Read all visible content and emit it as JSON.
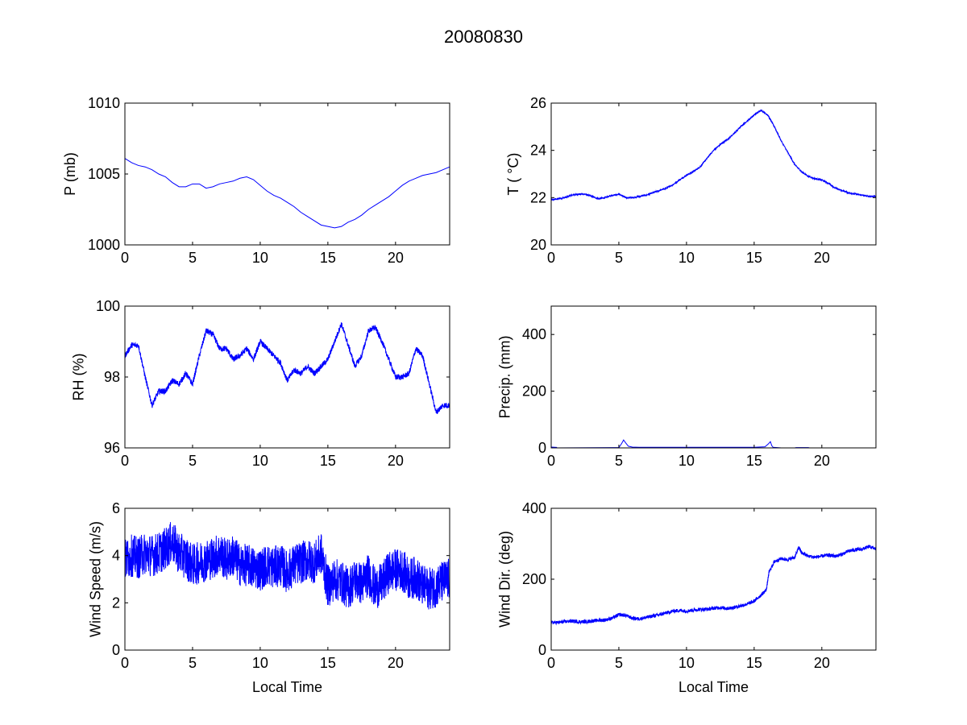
{
  "figure": {
    "title": "20080830"
  },
  "chart_data": [
    {
      "id": "pressure",
      "type": "line",
      "ylabel": "P (mb)",
      "xlabel": "",
      "xlim": [
        0,
        24
      ],
      "ylim": [
        1000,
        1010
      ],
      "xticks": [
        0,
        5,
        10,
        15,
        20
      ],
      "yticks": [
        1000,
        1005,
        1010
      ],
      "series": [
        {
          "color": "#0000ff",
          "noise": 0.0,
          "x": [
            0,
            0.5,
            1,
            1.5,
            2,
            2.5,
            3,
            3.5,
            4,
            4.5,
            5,
            5.5,
            6,
            6.5,
            7,
            7.5,
            8,
            8.5,
            9,
            9.5,
            10,
            10.5,
            11,
            11.5,
            12,
            12.5,
            13,
            13.5,
            14,
            14.5,
            15,
            15.5,
            16,
            16.5,
            17,
            17.5,
            18,
            18.5,
            19,
            19.5,
            20,
            20.5,
            21,
            21.5,
            22,
            22.5,
            23,
            23.5,
            24
          ],
          "y": [
            1006.1,
            1005.8,
            1005.6,
            1005.5,
            1005.3,
            1005.0,
            1004.8,
            1004.4,
            1004.1,
            1004.1,
            1004.3,
            1004.3,
            1004.0,
            1004.1,
            1004.3,
            1004.4,
            1004.5,
            1004.7,
            1004.8,
            1004.6,
            1004.2,
            1003.8,
            1003.5,
            1003.3,
            1003.0,
            1002.7,
            1002.3,
            1002.0,
            1001.7,
            1001.4,
            1001.3,
            1001.2,
            1001.3,
            1001.6,
            1001.8,
            1002.1,
            1002.5,
            1002.8,
            1003.1,
            1003.4,
            1003.8,
            1004.2,
            1004.5,
            1004.7,
            1004.9,
            1005.0,
            1005.1,
            1005.3,
            1005.5
          ]
        }
      ]
    },
    {
      "id": "temperature",
      "type": "line",
      "ylabel": "T ( °C)",
      "xlabel": "",
      "xlim": [
        0,
        24
      ],
      "ylim": [
        20,
        26
      ],
      "xticks": [
        0,
        5,
        10,
        15,
        20
      ],
      "yticks": [
        20,
        22,
        24,
        26
      ],
      "series": [
        {
          "color": "#0000ff",
          "noise": 0.03,
          "x": [
            0,
            0.5,
            1,
            1.5,
            2,
            2.5,
            3,
            3.5,
            4,
            4.5,
            5,
            5.5,
            6,
            6.5,
            7,
            7.5,
            8,
            8.5,
            9,
            9.5,
            10,
            10.5,
            11,
            11.5,
            12,
            12.5,
            13,
            13.5,
            14,
            14.5,
            15,
            15.5,
            16,
            16.5,
            17,
            17.5,
            18,
            18.5,
            19,
            19.5,
            20,
            20.5,
            21,
            21.5,
            22,
            22.5,
            23,
            23.5,
            24
          ],
          "y": [
            21.9,
            21.95,
            22.0,
            22.1,
            22.15,
            22.15,
            22.05,
            21.95,
            22.0,
            22.1,
            22.15,
            22.0,
            22.0,
            22.05,
            22.1,
            22.2,
            22.3,
            22.4,
            22.55,
            22.75,
            22.95,
            23.1,
            23.3,
            23.65,
            24.0,
            24.25,
            24.45,
            24.7,
            25.0,
            25.25,
            25.5,
            25.7,
            25.5,
            25.0,
            24.4,
            23.9,
            23.4,
            23.1,
            22.9,
            22.8,
            22.75,
            22.6,
            22.4,
            22.3,
            22.2,
            22.15,
            22.1,
            22.05,
            22.05
          ]
        }
      ]
    },
    {
      "id": "humidity",
      "type": "line",
      "ylabel": "RH (%)",
      "xlabel": "",
      "xlim": [
        0,
        24
      ],
      "ylim": [
        96,
        100
      ],
      "xticks": [
        0,
        5,
        10,
        15,
        20
      ],
      "yticks": [
        96,
        98,
        100
      ],
      "series": [
        {
          "color": "#0000ff",
          "noise": 0.08,
          "x": [
            0,
            0.5,
            1,
            1.5,
            2,
            2.5,
            3,
            3.5,
            4,
            4.5,
            5,
            5.5,
            6,
            6.5,
            7,
            7.5,
            8,
            8.5,
            9,
            9.5,
            10,
            10.5,
            11,
            11.5,
            12,
            12.5,
            13,
            13.5,
            14,
            14.5,
            15,
            15.5,
            16,
            16.5,
            17,
            17.5,
            18,
            18.5,
            19,
            19.5,
            20,
            20.5,
            21,
            21.5,
            22,
            22.5,
            23,
            23.5,
            24
          ],
          "y": [
            98.6,
            98.9,
            98.9,
            98.0,
            97.2,
            97.6,
            97.6,
            97.9,
            97.8,
            98.1,
            97.8,
            98.6,
            99.3,
            99.2,
            98.8,
            98.8,
            98.5,
            98.6,
            98.8,
            98.5,
            99.0,
            98.8,
            98.6,
            98.4,
            97.9,
            98.2,
            98.1,
            98.3,
            98.1,
            98.3,
            98.5,
            99.0,
            99.5,
            98.9,
            98.3,
            98.6,
            99.3,
            99.4,
            99.0,
            98.5,
            98.0,
            98.0,
            98.1,
            98.8,
            98.6,
            97.8,
            97.0,
            97.2,
            97.2
          ]
        }
      ]
    },
    {
      "id": "precipitation",
      "type": "line",
      "ylabel": "Precip. (mm)",
      "xlabel": "",
      "xlim": [
        0,
        24
      ],
      "ylim": [
        0,
        500
      ],
      "xticks": [
        0,
        5,
        10,
        15,
        20
      ],
      "yticks": [
        0,
        200,
        400
      ],
      "series": [
        {
          "color": "#0000ff",
          "noise": 0.0,
          "x": [
            0.0,
            0.4,
            0.41,
            5.0,
            5.2,
            5.35,
            5.5,
            5.7,
            6.0,
            6.5,
            7.0,
            8.0,
            9.0,
            10.0,
            11.0,
            12.0,
            13.0,
            14.0,
            15.0,
            15.8,
            16.05,
            16.2,
            16.3,
            16.4,
            17.0,
            18.0,
            18.1,
            19.0,
            19.1,
            20.0
          ],
          "y": [
            3,
            2,
            0,
            1,
            15,
            28,
            18,
            6,
            3,
            2,
            2,
            2,
            2,
            2,
            2,
            2,
            2,
            2,
            2,
            4,
            14,
            22,
            8,
            2,
            0,
            0,
            1,
            1,
            0,
            0
          ]
        }
      ]
    },
    {
      "id": "wind-speed",
      "type": "line",
      "ylabel": "Wind Speed (m/s)",
      "xlabel": "Local Time",
      "xlim": [
        0,
        24
      ],
      "ylim": [
        0,
        6
      ],
      "xticks": [
        0,
        5,
        10,
        15,
        20
      ],
      "yticks": [
        0,
        2,
        4,
        6
      ],
      "series": [
        {
          "color": "#0000ff",
          "noise": 0.9,
          "x": [
            0,
            0.5,
            1,
            1.5,
            2,
            2.5,
            3,
            3.5,
            4,
            4.5,
            5,
            5.5,
            6,
            6.5,
            7,
            7.5,
            8,
            8.5,
            9,
            9.5,
            10,
            10.5,
            11,
            11.5,
            12,
            12.5,
            13,
            13.5,
            14,
            14.5,
            15,
            15.5,
            16,
            16.5,
            17,
            17.5,
            18,
            18.5,
            19,
            19.5,
            20,
            20.5,
            21,
            21.5,
            22,
            22.5,
            23,
            23.5,
            24
          ],
          "y": [
            3.8,
            4.0,
            3.9,
            4.1,
            4.0,
            4.1,
            4.3,
            4.6,
            4.1,
            3.9,
            3.6,
            3.7,
            3.8,
            3.9,
            4.1,
            3.8,
            4.0,
            3.6,
            3.6,
            3.5,
            3.4,
            3.6,
            3.5,
            3.6,
            3.3,
            3.6,
            3.7,
            3.8,
            3.7,
            4.1,
            2.7,
            3.0,
            2.9,
            2.6,
            3.0,
            2.8,
            3.2,
            2.6,
            2.8,
            3.3,
            3.4,
            3.4,
            3.0,
            3.1,
            2.7,
            2.6,
            2.7,
            2.9,
            3.0
          ]
        }
      ]
    },
    {
      "id": "wind-direction",
      "type": "line",
      "ylabel": "Wind Dir. (deg)",
      "xlabel": "Local Time",
      "xlim": [
        0,
        24
      ],
      "ylim": [
        0,
        400
      ],
      "xticks": [
        0,
        5,
        10,
        15,
        20
      ],
      "yticks": [
        0,
        200,
        400
      ],
      "series": [
        {
          "color": "#0000ff",
          "noise": 5,
          "x": [
            0,
            0.5,
            1,
            1.5,
            2,
            2.5,
            3,
            3.5,
            4,
            4.5,
            5,
            5.5,
            6,
            6.5,
            7,
            7.5,
            8,
            8.5,
            9,
            9.5,
            10,
            10.5,
            11,
            11.5,
            12,
            12.5,
            13,
            13.5,
            14,
            14.5,
            15,
            15.5,
            15.9,
            16.1,
            16.5,
            17,
            17.5,
            18,
            18.3,
            18.5,
            19,
            19.5,
            20,
            20.5,
            21,
            21.5,
            22,
            22.5,
            23,
            23.5,
            24
          ],
          "y": [
            78,
            78,
            80,
            82,
            80,
            80,
            82,
            84,
            85,
            90,
            100,
            98,
            90,
            88,
            92,
            96,
            100,
            105,
            110,
            112,
            110,
            113,
            115,
            115,
            118,
            120,
            118,
            120,
            125,
            130,
            138,
            155,
            170,
            220,
            250,
            258,
            255,
            262,
            290,
            275,
            265,
            262,
            265,
            268,
            265,
            270,
            280,
            283,
            285,
            292,
            285
          ]
        }
      ]
    }
  ]
}
